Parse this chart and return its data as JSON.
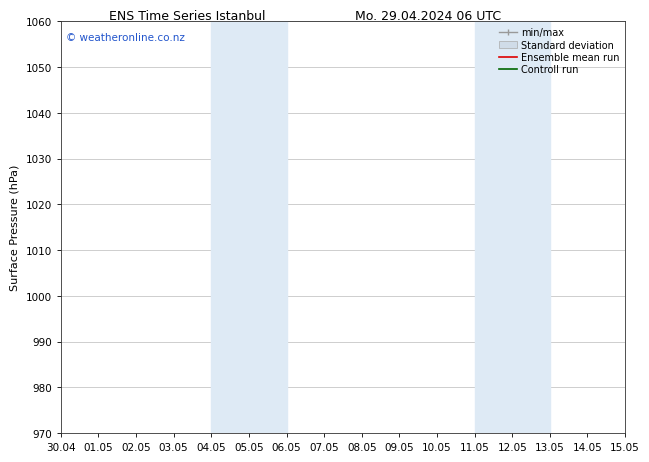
{
  "title_left": "ENS Time Series Istanbul",
  "title_right": "Mo. 29.04.2024 06 UTC",
  "ylabel": "Surface Pressure (hPa)",
  "ylim": [
    970,
    1060
  ],
  "yticks": [
    970,
    980,
    990,
    1000,
    1010,
    1020,
    1030,
    1040,
    1050,
    1060
  ],
  "xlim_start": 0,
  "xlim_end": 15,
  "xtick_labels": [
    "30.04",
    "01.05",
    "02.05",
    "03.05",
    "04.05",
    "05.05",
    "06.05",
    "07.05",
    "08.05",
    "09.05",
    "10.05",
    "11.05",
    "12.05",
    "13.05",
    "14.05",
    "15.05"
  ],
  "xtick_positions": [
    0,
    1,
    2,
    3,
    4,
    5,
    6,
    7,
    8,
    9,
    10,
    11,
    12,
    13,
    14,
    15
  ],
  "shaded_regions": [
    {
      "x_start": 4,
      "x_end": 6
    },
    {
      "x_start": 11,
      "x_end": 13
    }
  ],
  "shade_color": "#deeaf5",
  "shade_alpha": 1.0,
  "watermark_text": "© weatheronline.co.nz",
  "watermark_color": "#2255cc",
  "watermark_fontsize": 7.5,
  "legend_labels": [
    "min/max",
    "Standard deviation",
    "Ensemble mean run",
    "Controll run"
  ],
  "background_color": "#ffffff",
  "plot_bg_color": "#ffffff",
  "grid_color": "#bbbbbb",
  "title_fontsize": 9,
  "axis_label_fontsize": 8,
  "tick_fontsize": 7.5,
  "legend_fontsize": 7
}
